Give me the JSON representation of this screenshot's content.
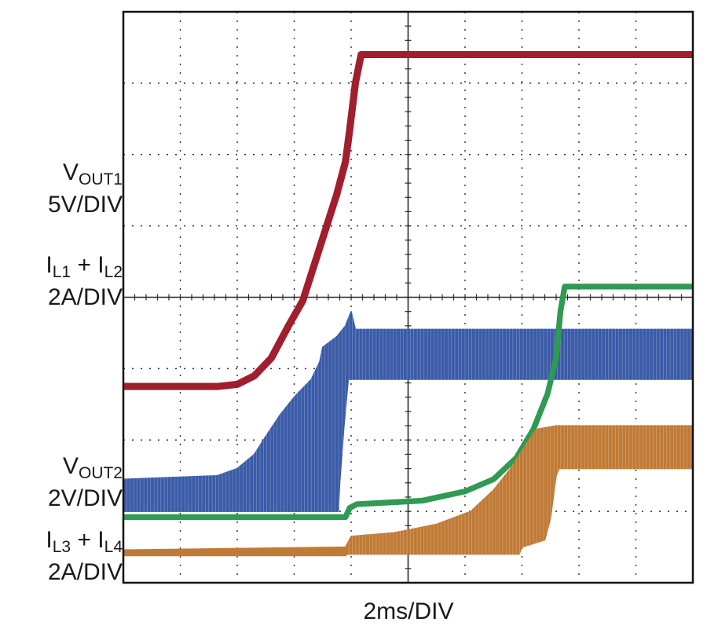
{
  "chart_data": {
    "type": "line",
    "xlabel": "2ms/DIV",
    "x_unit": "ms",
    "x_per_div": 2,
    "divisions": {
      "x": 10,
      "y": 8
    },
    "xlim": [
      0,
      20
    ],
    "ylim_div": [
      0,
      8
    ],
    "colors": {
      "vout1": "#a01e2e",
      "il12": "#3b5ba8",
      "vout2": "#2e9a52",
      "il34": "#c07a35",
      "grid": "#2a2a2a",
      "frame": "#111111"
    },
    "series": [
      {
        "key": "vout1",
        "name": "VOUT1 5V/DIV",
        "label_main": "V",
        "label_sub": "OUT1",
        "scale": "5V/DIV",
        "kind": "line",
        "thickness_div": 0.1,
        "points": [
          [
            0,
            2.75
          ],
          [
            3.3,
            2.75
          ],
          [
            4.0,
            2.78
          ],
          [
            4.6,
            2.9
          ],
          [
            5.2,
            3.15
          ],
          [
            5.8,
            3.6
          ],
          [
            6.3,
            3.95
          ],
          [
            6.7,
            4.45
          ],
          [
            7.1,
            4.95
          ],
          [
            7.5,
            5.45
          ],
          [
            7.8,
            5.9
          ],
          [
            7.95,
            6.35
          ],
          [
            8.15,
            7.0
          ],
          [
            8.35,
            7.4
          ],
          [
            20,
            7.4
          ]
        ]
      },
      {
        "key": "il12",
        "name": "IL1 + IL2 2A/DIV",
        "label_main": "I",
        "label_sub": "L1",
        "label_mid": " + I",
        "label_sub2": "L2",
        "scale": "2A/DIV",
        "kind": "band",
        "upper": [
          [
            0,
            1.45
          ],
          [
            3.3,
            1.5
          ],
          [
            4.0,
            1.6
          ],
          [
            4.6,
            1.8
          ],
          [
            5.0,
            2.05
          ],
          [
            5.5,
            2.35
          ],
          [
            6.0,
            2.6
          ],
          [
            6.6,
            2.85
          ],
          [
            6.9,
            3.1
          ],
          [
            7.0,
            3.3
          ],
          [
            7.5,
            3.45
          ],
          [
            7.8,
            3.6
          ],
          [
            8.0,
            3.8
          ],
          [
            8.15,
            3.55
          ],
          [
            20,
            3.55
          ]
        ],
        "lower": [
          [
            0,
            1.0
          ],
          [
            7.55,
            1.0
          ],
          [
            7.6,
            1.4
          ],
          [
            7.75,
            2.2
          ],
          [
            7.9,
            2.85
          ],
          [
            8.1,
            2.85
          ],
          [
            20,
            2.85
          ]
        ]
      },
      {
        "key": "vout2",
        "name": "VOUT2 2V/DIV",
        "label_main": "V",
        "label_sub": "OUT2",
        "scale": "2V/DIV",
        "kind": "line",
        "thickness_div": 0.08,
        "points": [
          [
            0,
            0.92
          ],
          [
            7.8,
            0.92
          ],
          [
            7.95,
            1.05
          ],
          [
            8.2,
            1.1
          ],
          [
            10.5,
            1.15
          ],
          [
            12.0,
            1.28
          ],
          [
            13.0,
            1.45
          ],
          [
            13.8,
            1.75
          ],
          [
            14.4,
            2.15
          ],
          [
            14.9,
            2.65
          ],
          [
            15.2,
            3.15
          ],
          [
            15.35,
            3.8
          ],
          [
            15.5,
            4.15
          ],
          [
            20,
            4.15
          ]
        ]
      },
      {
        "key": "il34",
        "name": "IL3 + IL4 2A/DIV",
        "label_main": "I",
        "label_sub": "L3",
        "label_mid": " + I",
        "label_sub2": "L4",
        "scale": "2A/DIV",
        "kind": "band",
        "upper": [
          [
            0,
            0.46
          ],
          [
            7.8,
            0.5
          ],
          [
            8.0,
            0.65
          ],
          [
            9.5,
            0.7
          ],
          [
            11.0,
            0.82
          ],
          [
            12.2,
            1.0
          ],
          [
            13.0,
            1.3
          ],
          [
            13.6,
            1.6
          ],
          [
            14.0,
            1.85
          ],
          [
            14.5,
            2.15
          ],
          [
            15.2,
            2.2
          ],
          [
            20,
            2.2
          ]
        ],
        "lower": [
          [
            0,
            0.38
          ],
          [
            7.8,
            0.38
          ],
          [
            7.85,
            0.4
          ],
          [
            13.9,
            0.4
          ],
          [
            14.0,
            0.5
          ],
          [
            14.8,
            0.6
          ],
          [
            15.0,
            0.9
          ],
          [
            15.2,
            1.5
          ],
          [
            15.3,
            1.6
          ],
          [
            20,
            1.6
          ]
        ]
      }
    ]
  }
}
